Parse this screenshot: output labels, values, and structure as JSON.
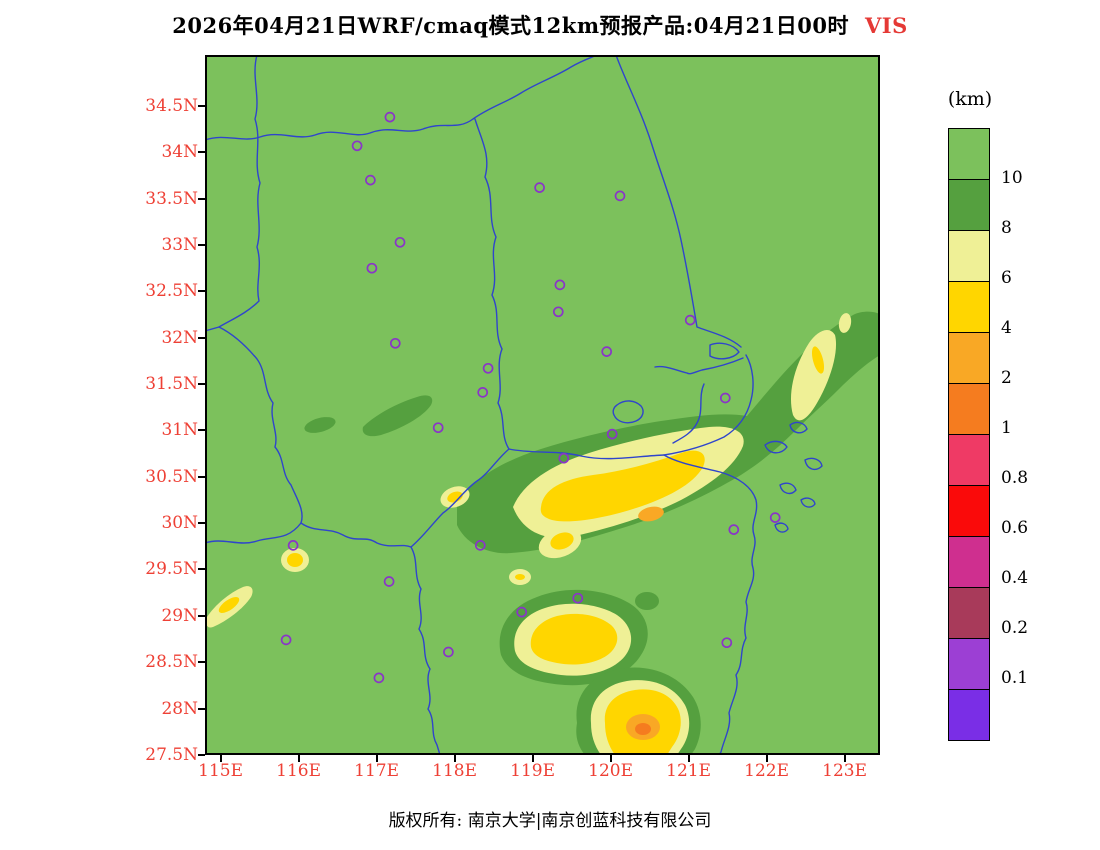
{
  "title": {
    "text": "2026年04月21日WRF/cmaq模式12km预报产品:04月21日00时",
    "product": "VIS"
  },
  "legend": {
    "unit_label": "(km)",
    "tick_labels": [
      "10",
      "8",
      "6",
      "4",
      "2",
      "1",
      "0.8",
      "0.6",
      "0.4",
      "0.2",
      "0.1"
    ],
    "colors": [
      "#7cc15c",
      "#55a03f",
      "#eff096",
      "#ffd600",
      "#f9a825",
      "#f57c1f",
      "#ef3a65",
      "#fa0a0a",
      "#cf2f8f",
      "#a83a5a",
      "#9c3fd4",
      "#7a2ee6"
    ]
  },
  "axes": {
    "lat_ticks": [
      {
        "label": "34.5N",
        "value": 34.5
      },
      {
        "label": "34N",
        "value": 34.0
      },
      {
        "label": "33.5N",
        "value": 33.5
      },
      {
        "label": "33N",
        "value": 33.0
      },
      {
        "label": "32.5N",
        "value": 32.5
      },
      {
        "label": "32N",
        "value": 32.0
      },
      {
        "label": "31.5N",
        "value": 31.5
      },
      {
        "label": "31N",
        "value": 31.0
      },
      {
        "label": "30.5N",
        "value": 30.5
      },
      {
        "label": "30N",
        "value": 30.0
      },
      {
        "label": "29.5N",
        "value": 29.5
      },
      {
        "label": "29N",
        "value": 29.0
      },
      {
        "label": "28.5N",
        "value": 28.5
      },
      {
        "label": "28N",
        "value": 28.0
      },
      {
        "label": "27.5N",
        "value": 27.5
      }
    ],
    "lon_ticks": [
      {
        "label": "115E",
        "value": 115
      },
      {
        "label": "116E",
        "value": 116
      },
      {
        "label": "117E",
        "value": 117
      },
      {
        "label": "118E",
        "value": 118
      },
      {
        "label": "119E",
        "value": 119
      },
      {
        "label": "120E",
        "value": 120
      },
      {
        "label": "121E",
        "value": 121
      },
      {
        "label": "122E",
        "value": 122
      },
      {
        "label": "123E",
        "value": 123
      }
    ]
  },
  "colors": {
    "boundary_blue": "#2f45cc",
    "station_purple": "#8a35c8",
    "axis_label_red": "#ee4035",
    "product_red": "#e53935"
  },
  "stations": [
    [
      117.17,
      34.38
    ],
    [
      116.75,
      34.07
    ],
    [
      116.92,
      33.7
    ],
    [
      119.09,
      33.62
    ],
    [
      120.12,
      33.53
    ],
    [
      117.3,
      33.03
    ],
    [
      116.94,
      32.75
    ],
    [
      119.35,
      32.57
    ],
    [
      119.33,
      32.28
    ],
    [
      121.02,
      32.19
    ],
    [
      117.24,
      31.94
    ],
    [
      119.95,
      31.85
    ],
    [
      118.43,
      31.67
    ],
    [
      118.36,
      31.41
    ],
    [
      121.47,
      31.35
    ],
    [
      117.79,
      31.03
    ],
    [
      120.02,
      30.96
    ],
    [
      119.4,
      30.7
    ],
    [
      122.11,
      30.06
    ],
    [
      121.58,
      29.93
    ],
    [
      115.93,
      29.76
    ],
    [
      118.33,
      29.76
    ],
    [
      117.16,
      29.37
    ],
    [
      119.58,
      29.19
    ],
    [
      118.86,
      29.04
    ],
    [
      115.84,
      28.74
    ],
    [
      121.49,
      28.71
    ],
    [
      117.92,
      28.61
    ],
    [
      117.03,
      28.33
    ]
  ],
  "footer": {
    "copyright": "版权所有: 南京大学|南京创蓝科技有限公司"
  }
}
